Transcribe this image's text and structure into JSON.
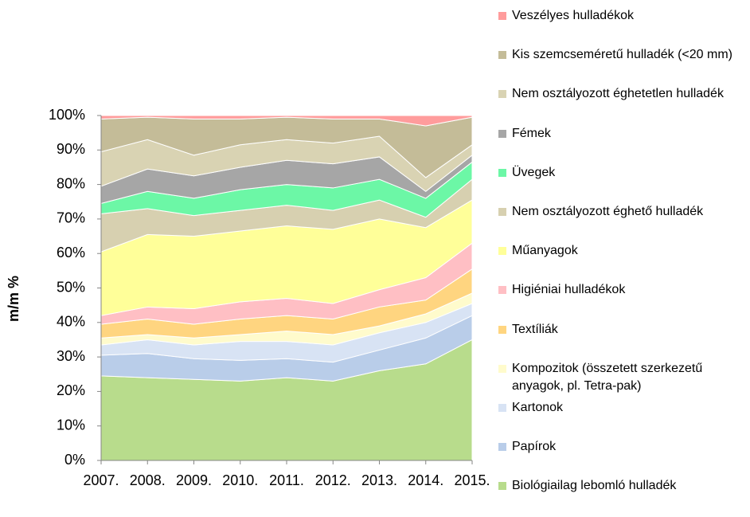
{
  "chart_data": {
    "type": "stacked-area",
    "y_label": "m/m %",
    "categories": [
      "2007.",
      "2008.",
      "2009.",
      "2010.",
      "2011.",
      "2012.",
      "2013.",
      "2014.",
      "2015."
    ],
    "ylim": [
      0,
      100
    ],
    "yticks": [
      {
        "value": 0,
        "label": "0%"
      },
      {
        "value": 10,
        "label": "10%"
      },
      {
        "value": 20,
        "label": "20%"
      },
      {
        "value": 30,
        "label": "30%"
      },
      {
        "value": 40,
        "label": "40%"
      },
      {
        "value": 50,
        "label": "50%"
      },
      {
        "value": 60,
        "label": "60%"
      },
      {
        "value": 70,
        "label": "70%"
      },
      {
        "value": 80,
        "label": "80%"
      },
      {
        "value": 90,
        "label": "90%"
      },
      {
        "value": 100,
        "label": "100%"
      }
    ],
    "series": [
      {
        "name": "Biológiailag lebomló hulladék",
        "color": "#b8dc8c",
        "values": [
          24.5,
          24,
          23.5,
          23,
          24,
          23,
          26,
          28,
          35
        ]
      },
      {
        "name": "Papírok",
        "color": "#b9cde9",
        "values": [
          6,
          7,
          6,
          6,
          5.5,
          5.5,
          6,
          7.5,
          7
        ]
      },
      {
        "name": "Kartonok",
        "color": "#d8e3f4",
        "values": [
          3,
          4,
          4,
          5.5,
          5,
          5,
          5,
          4.5,
          3.5
        ]
      },
      {
        "name": "Kompozitok (összetett szerkezetű anyagok, pl. Tetra-pak)",
        "color": "#fffbcc",
        "values": [
          2,
          1.5,
          2,
          2,
          3,
          3,
          2,
          2.5,
          3
        ]
      },
      {
        "name": "Textíliák",
        "color": "#ffd580",
        "values": [
          4,
          4.5,
          4,
          4.5,
          4.5,
          4.5,
          5.5,
          4,
          7
        ]
      },
      {
        "name": "Higiéniai hulladékok",
        "color": "#ffbfc4",
        "values": [
          2.5,
          3.5,
          4.5,
          5,
          5,
          4.5,
          5,
          6.5,
          7.5
        ]
      },
      {
        "name": "Műanyagok",
        "color": "#ffff99",
        "values": [
          18.5,
          21,
          21,
          20.5,
          21,
          21.5,
          20.5,
          14.5,
          12.5
        ]
      },
      {
        "name": "Nem osztályozott éghető hulladék",
        "color": "#d7d0b0",
        "values": [
          11,
          7.5,
          6,
          6,
          6,
          5.5,
          5.5,
          3,
          6
        ]
      },
      {
        "name": "Üvegek",
        "color": "#6cf7a6",
        "values": [
          3,
          5,
          5,
          6,
          6,
          6.5,
          6,
          5.5,
          5
        ]
      },
      {
        "name": "Fémek",
        "color": "#a6a6a6",
        "values": [
          5,
          6.5,
          6.5,
          6.5,
          7,
          7,
          6.5,
          2,
          2
        ]
      },
      {
        "name": "Nem osztályozott éghetetlen hulladék",
        "color": "#d9d3b3",
        "values": [
          10,
          8.5,
          6,
          6.5,
          6,
          6,
          6,
          4,
          3
        ]
      },
      {
        "name": "Kis szemcseméretű hulladék (<20 mm)",
        "color": "#c4bc98",
        "values": [
          9.5,
          6.5,
          10.5,
          7.5,
          6.5,
          7,
          5,
          15,
          8
        ]
      },
      {
        "name": "Veszélyes hulladékok",
        "color": "#ff9c9c",
        "values": [
          1,
          0.5,
          1,
          1,
          0.5,
          1,
          1,
          3,
          0.5
        ]
      }
    ]
  }
}
